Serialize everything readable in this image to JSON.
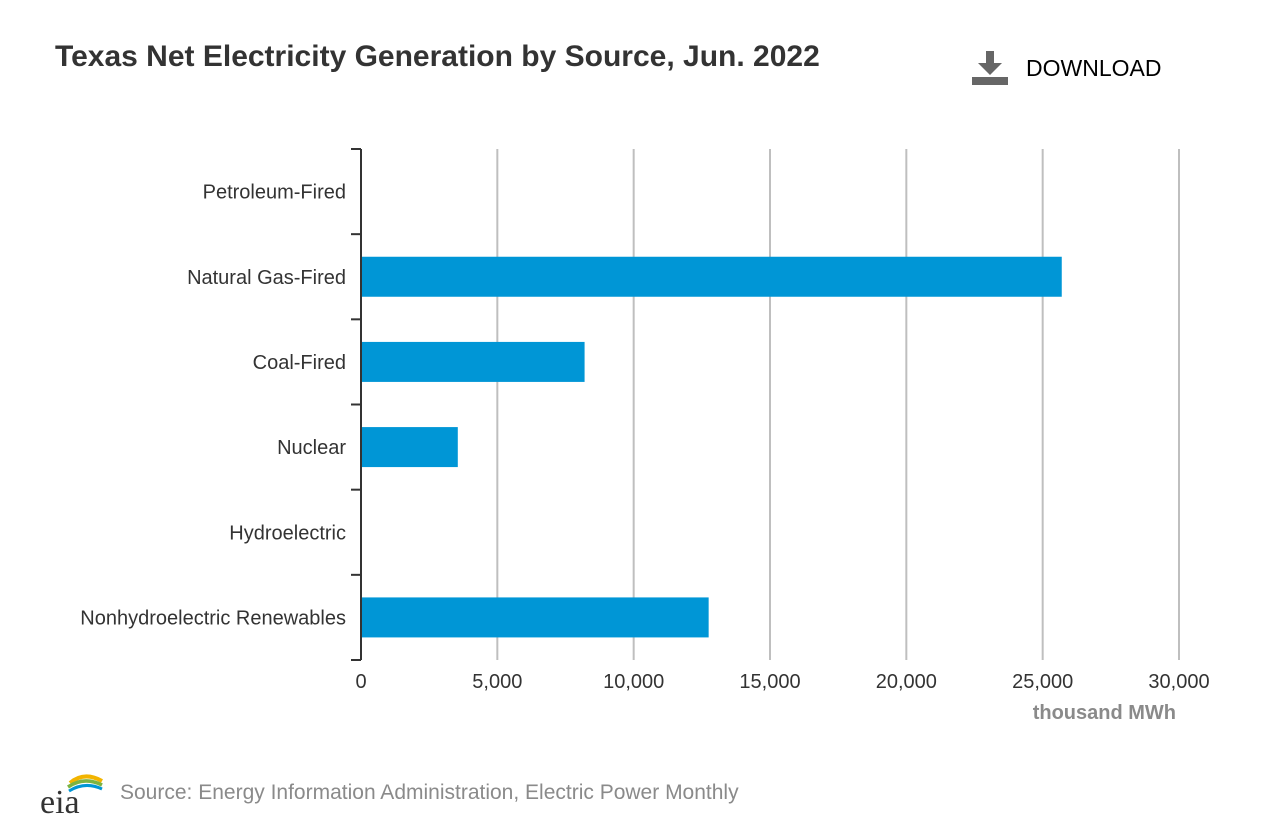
{
  "header": {
    "title": "Texas Net Electricity Generation by Source, Jun. 2022",
    "download_label": "DOWNLOAD",
    "download_icon": "download-icon"
  },
  "footer": {
    "logo_text": "eia",
    "source_text": "Source: Energy Information Administration, Electric Power Monthly"
  },
  "colors": {
    "bar": "#0096d6",
    "grid": "#bfbfbf",
    "axis": "#333333",
    "unit_label": "#8a8a8a"
  },
  "chart_data": {
    "type": "bar",
    "orientation": "horizontal",
    "title": "Texas Net Electricity Generation by Source, Jun. 2022",
    "categories": [
      "Petroleum-Fired",
      "Natural Gas-Fired",
      "Coal-Fired",
      "Nuclear",
      "Hydroelectric",
      "Nonhydroelectric Renewables"
    ],
    "values": [
      0,
      25700,
      8200,
      3550,
      0,
      12750
    ],
    "xlim": [
      0,
      30000
    ],
    "xticks": [
      0,
      5000,
      10000,
      15000,
      20000,
      25000,
      30000
    ],
    "xtick_labels": [
      "0",
      "5,000",
      "10,000",
      "15,000",
      "20,000",
      "25,000",
      "30,000"
    ],
    "xlabel": "thousand MWh",
    "ylabel": "",
    "grid": true,
    "legend": "none"
  }
}
